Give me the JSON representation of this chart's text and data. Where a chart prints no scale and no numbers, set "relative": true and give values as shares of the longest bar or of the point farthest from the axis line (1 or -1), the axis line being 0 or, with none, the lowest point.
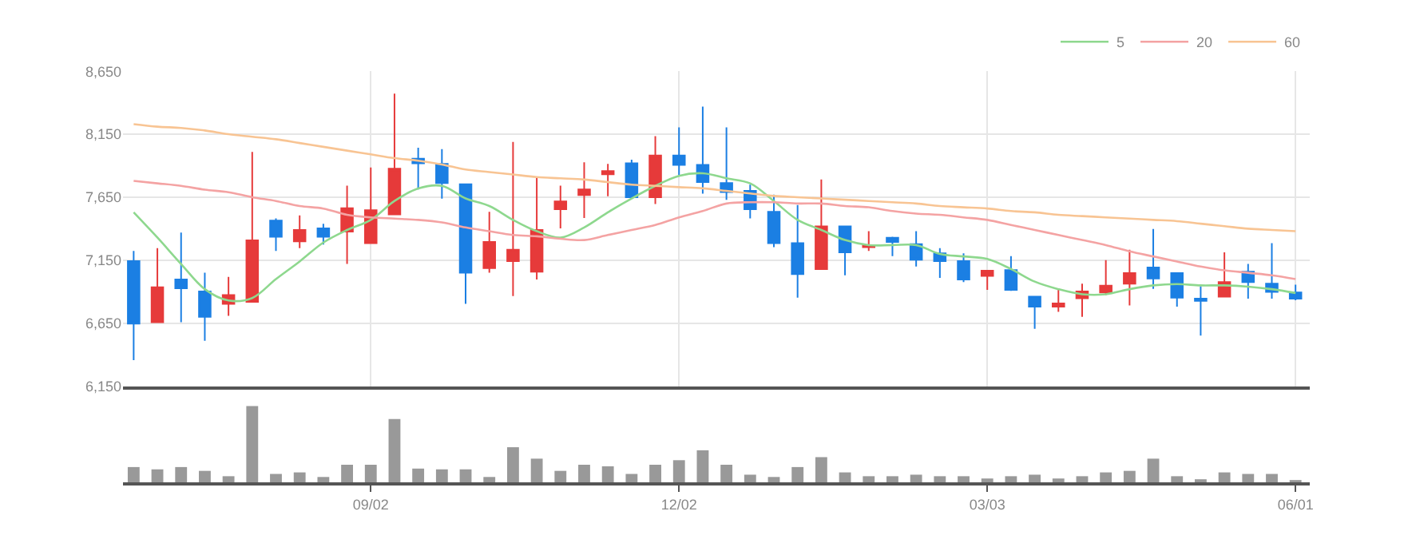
{
  "chart_data": [
    {
      "type": "candlestick",
      "tick_labels": "y",
      "grid": true,
      "legend": "top right",
      "categories": [
        null,
        null,
        null,
        null,
        null,
        null,
        null,
        null,
        null,
        null,
        null,
        null,
        null,
        null,
        null,
        null,
        null,
        null,
        null,
        null,
        null,
        null,
        null,
        null,
        null,
        null,
        null,
        null,
        null,
        null,
        null,
        null,
        null,
        null,
        null,
        null,
        null,
        null,
        null,
        null,
        null,
        null,
        null,
        null,
        null,
        null,
        null,
        null,
        null,
        null
      ],
      "ylim": [
        6150,
        8650
      ],
      "yticks": [
        {
          "value": 6150,
          "label": "6,150"
        },
        {
          "value": 6650,
          "label": "6,650"
        },
        {
          "value": 7150,
          "label": "7,150"
        },
        {
          "value": 7650,
          "label": "7,650"
        },
        {
          "value": 8150,
          "label": "8,150"
        },
        {
          "value": 8650,
          "label": "8,650"
        }
      ],
      "ohlc": [
        [
          7142,
          7224,
          6357,
          6646
        ],
        [
          6658,
          7245,
          6658,
          6935
        ],
        [
          6997,
          7369,
          6658,
          6927
        ],
        [
          6902,
          7051,
          6510,
          6700
        ],
        [
          6803,
          7018,
          6708,
          6873
        ],
        [
          6820,
          8010,
          6820,
          7307
        ],
        [
          7464,
          7481,
          7224,
          7336
        ],
        [
          7299,
          7505,
          7245,
          7390
        ],
        [
          7402,
          7439,
          7274,
          7336
        ],
        [
          7377,
          7741,
          7121,
          7563
        ],
        [
          7286,
          7886,
          7286,
          7547
        ],
        [
          7514,
          8472,
          7514,
          7877
        ],
        [
          7956,
          8043,
          7712,
          7919
        ],
        [
          7915,
          8031,
          7638,
          7762
        ],
        [
          7753,
          7753,
          6803,
          7051
        ],
        [
          7088,
          7534,
          7051,
          7295
        ],
        [
          7142,
          8089,
          6865,
          7233
        ],
        [
          7059,
          7811,
          6997,
          7390
        ],
        [
          7555,
          7741,
          7402,
          7617
        ],
        [
          7667,
          7927,
          7485,
          7712
        ],
        [
          7832,
          7915,
          7658,
          7857
        ],
        [
          7919,
          7948,
          7638,
          7650
        ],
        [
          7650,
          8134,
          7596,
          7981
        ],
        [
          7981,
          8204,
          7824,
          7906
        ],
        [
          7906,
          8369,
          7679,
          7770
        ],
        [
          7762,
          8204,
          7629,
          7691
        ],
        [
          7700,
          7749,
          7481,
          7555
        ],
        [
          7534,
          7671,
          7253,
          7286
        ],
        [
          7286,
          7588,
          6853,
          7039
        ],
        [
          7080,
          7791,
          7080,
          7419
        ],
        [
          7419,
          7419,
          7030,
          7212
        ],
        [
          7253,
          7381,
          7224,
          7270
        ],
        [
          7328,
          7336,
          7183,
          7295
        ],
        [
          7278,
          7381,
          7100,
          7154
        ],
        [
          7204,
          7245,
          7010,
          7142
        ],
        [
          7142,
          7204,
          6976,
          6997
        ],
        [
          7026,
          7067,
          6915,
          7067
        ],
        [
          7072,
          7183,
          6906,
          6915
        ],
        [
          6861,
          6861,
          6605,
          6782
        ],
        [
          6782,
          6915,
          6741,
          6807
        ],
        [
          6848,
          6964,
          6700,
          6902
        ],
        [
          6894,
          7150,
          6873,
          6948
        ],
        [
          6964,
          7233,
          6791,
          7047
        ],
        [
          7092,
          7398,
          6923,
          7005
        ],
        [
          7047,
          7047,
          6782,
          6853
        ],
        [
          6844,
          6943,
          6551,
          6828
        ],
        [
          6861,
          7212,
          6861,
          6977
        ],
        [
          7059,
          7121,
          6844,
          6977
        ],
        [
          6964,
          7286,
          6844,
          6898
        ],
        [
          6894,
          6956,
          6832,
          6844
        ]
      ],
      "colors": [
        "#1b7fe3",
        "#e63a3a",
        "#1b7fe3",
        "#1b7fe3",
        "#e63a3a",
        "#e63a3a",
        "#1b7fe3",
        "#e63a3a",
        "#1b7fe3",
        "#e63a3a",
        "#e63a3a",
        "#e63a3a",
        "#1b7fe3",
        "#1b7fe3",
        "#1b7fe3",
        "#e63a3a",
        "#e63a3a",
        "#e63a3a",
        "#e63a3a",
        "#e63a3a",
        "#e63a3a",
        "#1b7fe3",
        "#e63a3a",
        "#1b7fe3",
        "#1b7fe3",
        "#1b7fe3",
        "#1b7fe3",
        "#1b7fe3",
        "#1b7fe3",
        "#e63a3a",
        "#1b7fe3",
        "#e63a3a",
        "#1b7fe3",
        "#1b7fe3",
        "#1b7fe3",
        "#1b7fe3",
        "#e63a3a",
        "#1b7fe3",
        "#1b7fe3",
        "#e63a3a",
        "#e63a3a",
        "#e63a3a",
        "#e63a3a",
        "#1b7fe3",
        "#1b7fe3",
        "#1b7fe3",
        "#e63a3a",
        "#1b7fe3",
        "#1b7fe3",
        "#1b7fe3"
      ],
      "series": [
        {
          "name": "5",
          "type": "line",
          "color": "#8ed88e",
          "values": [
            7530,
            7330,
            7120,
            6920,
            6830,
            6850,
            7000,
            7140,
            7290,
            7390,
            7470,
            7620,
            7720,
            7740,
            7640,
            7580,
            7470,
            7380,
            7330,
            7410,
            7530,
            7640,
            7740,
            7820,
            7840,
            7800,
            7760,
            7620,
            7470,
            7390,
            7310,
            7270,
            7270,
            7270,
            7200,
            7180,
            7160,
            7080,
            6980,
            6920,
            6880,
            6880,
            6920,
            6950,
            6960,
            6950,
            6950,
            6940,
            6920,
            6890
          ]
        },
        {
          "name": "20",
          "type": "line",
          "color": "#f4a3a3",
          "values": [
            7780,
            7760,
            7740,
            7710,
            7690,
            7650,
            7620,
            7580,
            7560,
            7510,
            7490,
            7480,
            7470,
            7450,
            7410,
            7380,
            7350,
            7340,
            7320,
            7310,
            7350,
            7390,
            7430,
            7490,
            7540,
            7600,
            7610,
            7610,
            7600,
            7600,
            7580,
            7570,
            7540,
            7520,
            7510,
            7490,
            7470,
            7430,
            7390,
            7350,
            7310,
            7270,
            7220,
            7180,
            7140,
            7100,
            7070,
            7050,
            7030,
            7000
          ]
        },
        {
          "name": "60",
          "type": "line",
          "color": "#f8c493",
          "values": [
            8230,
            8210,
            8200,
            8180,
            8150,
            8130,
            8110,
            8080,
            8050,
            8020,
            7990,
            7960,
            7940,
            7910,
            7870,
            7850,
            7830,
            7810,
            7800,
            7790,
            7770,
            7750,
            7740,
            7730,
            7720,
            7700,
            7680,
            7660,
            7650,
            7640,
            7630,
            7620,
            7610,
            7600,
            7580,
            7570,
            7560,
            7540,
            7530,
            7510,
            7500,
            7490,
            7480,
            7470,
            7460,
            7440,
            7420,
            7400,
            7390,
            7380
          ]
        }
      ]
    },
    {
      "type": "bar",
      "relative": true,
      "tick_labels": "x",
      "color": "#999999",
      "categories": [
        null,
        null,
        null,
        null,
        null,
        null,
        null,
        null,
        null,
        null,
        "09/02",
        null,
        null,
        null,
        null,
        null,
        null,
        null,
        null,
        null,
        null,
        null,
        null,
        "12/02",
        null,
        null,
        null,
        null,
        null,
        null,
        null,
        null,
        null,
        null,
        null,
        null,
        "03/03",
        null,
        null,
        null,
        null,
        null,
        null,
        null,
        null,
        null,
        null,
        null,
        null,
        "06/01"
      ],
      "values": [
        0.2,
        0.17,
        0.2,
        0.15,
        0.08,
        1,
        0.11,
        0.13,
        0.07,
        0.23,
        0.23,
        0.83,
        0.18,
        0.17,
        0.17,
        0.07,
        0.46,
        0.31,
        0.15,
        0.23,
        0.21,
        0.11,
        0.23,
        0.29,
        0.42,
        0.23,
        0.1,
        0.07,
        0.2,
        0.33,
        0.13,
        0.08,
        0.08,
        0.1,
        0.08,
        0.08,
        0.05,
        0.08,
        0.1,
        0.05,
        0.08,
        0.13,
        0.15,
        0.31,
        0.08,
        0.04,
        0.13,
        0.11,
        0.11,
        0.03
      ]
    }
  ]
}
